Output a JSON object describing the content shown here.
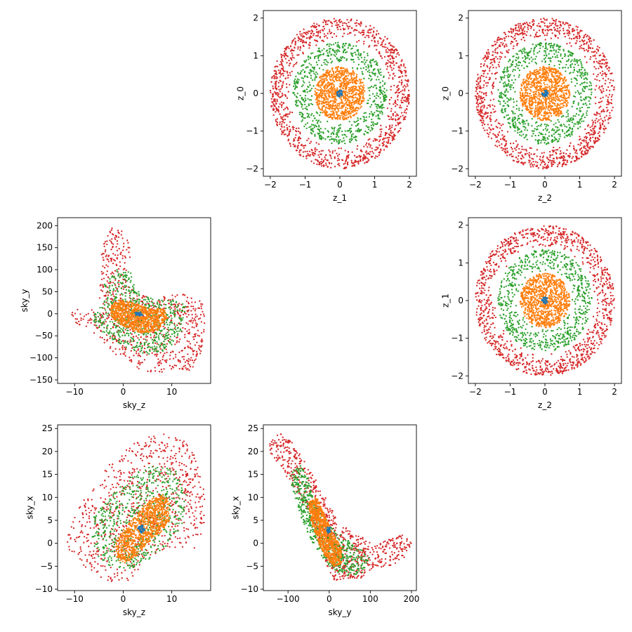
{
  "colors": {
    "c0": "#1f77b4",
    "c1": "#ff7f0e",
    "c2": "#2ca02c",
    "c3": "#d62728",
    "axis": "#000000",
    "background": "#ffffff"
  },
  "chart_data": [
    {
      "id": "z1_vs_z0",
      "type": "scatter",
      "xlabel": "z_1",
      "ylabel": "z_0",
      "xlim": [
        -2.2,
        2.2
      ],
      "ylim": [
        -2.2,
        2.2
      ],
      "xticks": [
        -2,
        -1,
        0,
        1,
        2
      ],
      "yticks": [
        -2,
        -1,
        0,
        1,
        2
      ],
      "grid": false,
      "series": [
        {
          "color": "c3",
          "shape": "ring",
          "cx": 0,
          "cy": 0,
          "r_in": 1.42,
          "r_out": 2.0,
          "n": 1100
        },
        {
          "color": "c2",
          "shape": "ring",
          "cx": 0,
          "cy": 0,
          "r_in": 0.75,
          "r_out": 1.35,
          "n": 700
        },
        {
          "color": "c1",
          "shape": "disk",
          "cx": 0,
          "cy": 0,
          "r_in": 0.0,
          "r_out": 0.72,
          "n": 950
        },
        {
          "color": "c0",
          "shape": "disk",
          "cx": 0,
          "cy": 0,
          "r_in": 0.0,
          "r_out": 0.09,
          "n": 40
        }
      ]
    },
    {
      "id": "z2_vs_z0",
      "type": "scatter",
      "xlabel": "z_2",
      "ylabel": "z_0",
      "xlim": [
        -2.2,
        2.2
      ],
      "ylim": [
        -2.2,
        2.2
      ],
      "xticks": [
        -2,
        -1,
        0,
        1,
        2
      ],
      "yticks": [
        -2,
        -1,
        0,
        1,
        2
      ],
      "grid": false,
      "series": [
        {
          "color": "c3",
          "shape": "ring",
          "cx": 0,
          "cy": 0,
          "r_in": 1.42,
          "r_out": 2.0,
          "n": 1100
        },
        {
          "color": "c2",
          "shape": "ring",
          "cx": 0,
          "cy": 0,
          "r_in": 0.75,
          "r_out": 1.35,
          "n": 700
        },
        {
          "color": "c1",
          "shape": "disk",
          "cx": 0,
          "cy": 0,
          "r_in": 0.0,
          "r_out": 0.72,
          "n": 950
        },
        {
          "color": "c0",
          "shape": "disk",
          "cx": 0,
          "cy": 0,
          "r_in": 0.0,
          "r_out": 0.09,
          "n": 40
        }
      ]
    },
    {
      "id": "z2_vs_z1",
      "type": "scatter",
      "xlabel": "z_2",
      "ylabel": "z_1",
      "xlim": [
        -2.2,
        2.2
      ],
      "ylim": [
        -2.2,
        2.2
      ],
      "xticks": [
        -2,
        -1,
        0,
        1,
        2
      ],
      "yticks": [
        -2,
        -1,
        0,
        1,
        2
      ],
      "grid": false,
      "series": [
        {
          "color": "c3",
          "shape": "ring",
          "cx": 0,
          "cy": 0,
          "r_in": 1.42,
          "r_out": 2.0,
          "n": 1100
        },
        {
          "color": "c2",
          "shape": "ring",
          "cx": 0,
          "cy": 0,
          "r_in": 0.75,
          "r_out": 1.35,
          "n": 700
        },
        {
          "color": "c1",
          "shape": "disk",
          "cx": 0,
          "cy": 0,
          "r_in": 0.0,
          "r_out": 0.72,
          "n": 950
        },
        {
          "color": "c0",
          "shape": "disk",
          "cx": 0,
          "cy": 0,
          "r_in": 0.0,
          "r_out": 0.09,
          "n": 40
        }
      ]
    },
    {
      "id": "skyz_vs_skyy",
      "type": "scatter",
      "xlabel": "sky_z",
      "ylabel": "sky_y",
      "xlim": [
        -13.5,
        18
      ],
      "ylim": [
        -158,
        218
      ],
      "xticks": [
        -10,
        0,
        10
      ],
      "yticks": [
        -150,
        -100,
        -50,
        0,
        50,
        100,
        150,
        200
      ],
      "grid": false,
      "series": [
        {
          "color": "c3",
          "shape": "blob",
          "points": [
            [
              -2.5,
              200
            ],
            [
              1.2,
              180
            ],
            [
              1.5,
              130
            ],
            [
              0.5,
              75
            ],
            [
              3,
              42
            ],
            [
              8,
              40
            ],
            [
              12,
              45
            ],
            [
              16,
              35
            ],
            [
              17,
              20
            ],
            [
              16.5,
              -80
            ],
            [
              14,
              -130
            ],
            [
              8,
              -133
            ],
            [
              4,
              -130
            ],
            [
              -2,
              -90
            ],
            [
              -6,
              -45
            ],
            [
              -10,
              -20
            ],
            [
              -11.5,
              8
            ],
            [
              -8,
              12
            ],
            [
              -4,
              5
            ],
            [
              -5,
              40
            ],
            [
              -5,
              120
            ],
            [
              -3.5,
              175
            ]
          ],
          "n": 800
        },
        {
          "color": "c2",
          "shape": "blob",
          "points": [
            [
              -1.5,
              105
            ],
            [
              1.5,
              95
            ],
            [
              2.5,
              55
            ],
            [
              6,
              35
            ],
            [
              11,
              30
            ],
            [
              13,
              18
            ],
            [
              12,
              -40
            ],
            [
              9,
              -85
            ],
            [
              5,
              -92
            ],
            [
              0,
              -78
            ],
            [
              -4,
              -45
            ],
            [
              -7,
              -10
            ],
            [
              -6,
              10
            ],
            [
              -4,
              28
            ],
            [
              -4,
              75
            ]
          ],
          "n": 650
        },
        {
          "color": "c1",
          "shape": "blob",
          "points": [
            [
              -1,
              32
            ],
            [
              2,
              25
            ],
            [
              5,
              14
            ],
            [
              8.5,
              10
            ],
            [
              9,
              -10
            ],
            [
              7,
              -40
            ],
            [
              3.5,
              -44
            ],
            [
              0,
              -28
            ],
            [
              -2.5,
              -10
            ],
            [
              -2.5,
              18
            ]
          ],
          "n": 900
        },
        {
          "color": "c0",
          "shape": "blob",
          "points": [
            [
              2.5,
              3
            ],
            [
              3.5,
              3
            ],
            [
              4.2,
              -3
            ],
            [
              3.5,
              -5
            ],
            [
              2.6,
              -3
            ]
          ],
          "n": 40
        }
      ]
    },
    {
      "id": "skyz_vs_skyx",
      "type": "scatter",
      "xlabel": "sky_z",
      "ylabel": "sky_x",
      "xlim": [
        -13.5,
        18
      ],
      "ylim": [
        -10.3,
        25.8
      ],
      "xticks": [
        -10,
        0,
        10
      ],
      "yticks": [
        -10,
        -5,
        0,
        5,
        10,
        15,
        20,
        25
      ],
      "grid": false,
      "series": [
        {
          "color": "c3",
          "shape": "blob",
          "points": [
            [
              -11.5,
              3
            ],
            [
              -8,
              10
            ],
            [
              -3,
              17
            ],
            [
              3,
              22.5
            ],
            [
              8,
              24.2
            ],
            [
              12,
              23.5
            ],
            [
              15,
              19
            ],
            [
              17,
              10
            ],
            [
              16.5,
              2
            ],
            [
              15,
              -1
            ],
            [
              10,
              -1
            ],
            [
              5,
              -3
            ],
            [
              3,
              -6
            ],
            [
              1,
              -8.2
            ],
            [
              -3,
              -8.3
            ],
            [
              -6,
              -7
            ],
            [
              -9,
              -4.5
            ],
            [
              -11.5,
              -1
            ]
          ],
          "n": 800
        },
        {
          "color": "c2",
          "shape": "blob",
          "points": [
            [
              -6,
              6
            ],
            [
              -2,
              11
            ],
            [
              2,
              15
            ],
            [
              7,
              17.5
            ],
            [
              11,
              16
            ],
            [
              13,
              11
            ],
            [
              12.5,
              5
            ],
            [
              10,
              0
            ],
            [
              6,
              -3
            ],
            [
              2,
              -5.5
            ],
            [
              -2,
              -5.5
            ],
            [
              -5,
              -3
            ],
            [
              -6.5,
              1
            ]
          ],
          "n": 650
        },
        {
          "color": "c1",
          "shape": "blob",
          "points": [
            [
              -1.5,
              0
            ],
            [
              0,
              3
            ],
            [
              3,
              6.5
            ],
            [
              5.5,
              9.5
            ],
            [
              8,
              10.8
            ],
            [
              9.5,
              9
            ],
            [
              9.5,
              5
            ],
            [
              8,
              2.5
            ],
            [
              5,
              0
            ],
            [
              2.5,
              -3
            ],
            [
              0,
              -4.5
            ],
            [
              -1.5,
              -3
            ]
          ],
          "n": 900
        },
        {
          "color": "c0",
          "shape": "blob",
          "points": [
            [
              3,
              3.5
            ],
            [
              4,
              4
            ],
            [
              4.5,
              3
            ],
            [
              3.8,
              2
            ],
            [
              3,
              2.5
            ]
          ],
          "n": 40
        }
      ]
    },
    {
      "id": "skyy_vs_skyx",
      "type": "scatter",
      "xlabel": "sky_y",
      "ylabel": "sky_x",
      "xlim": [
        -160,
        212
      ],
      "ylim": [
        -10.3,
        25.8
      ],
      "xticks": [
        -100,
        0,
        100,
        200
      ],
      "yticks": [
        -10,
        -5,
        0,
        5,
        10,
        15,
        20,
        25
      ],
      "grid": false,
      "series": [
        {
          "color": "c3",
          "shape": "blob",
          "points": [
            [
              -145,
              22
            ],
            [
              -120,
              24
            ],
            [
              -90,
              22
            ],
            [
              -60,
              18
            ],
            [
              -20,
              12
            ],
            [
              20,
              5
            ],
            [
              60,
              2
            ],
            [
              120,
              0
            ],
            [
              180,
              2
            ],
            [
              200,
              0
            ],
            [
              185,
              -3
            ],
            [
              150,
              -5
            ],
            [
              110,
              -5.5
            ],
            [
              80,
              -7.5
            ],
            [
              40,
              -8.2
            ],
            [
              10,
              -8
            ],
            [
              -5,
              -5
            ],
            [
              -20,
              0
            ],
            [
              -60,
              8
            ],
            [
              -100,
              14
            ],
            [
              -130,
              18
            ],
            [
              -145,
              20
            ]
          ],
          "n": 800
        },
        {
          "color": "c2",
          "shape": "blob",
          "points": [
            [
              -95,
              15
            ],
            [
              -70,
              17
            ],
            [
              -50,
              14
            ],
            [
              -25,
              8
            ],
            [
              10,
              3
            ],
            [
              60,
              0
            ],
            [
              100,
              -3
            ],
            [
              80,
              -6.5
            ],
            [
              40,
              -7.5
            ],
            [
              0,
              -5
            ],
            [
              -40,
              0
            ],
            [
              -70,
              6
            ],
            [
              -90,
              12
            ]
          ],
          "n": 650
        },
        {
          "color": "c1",
          "shape": "blob",
          "points": [
            [
              -50,
              9
            ],
            [
              -30,
              10
            ],
            [
              -10,
              6
            ],
            [
              10,
              2
            ],
            [
              30,
              -1
            ],
            [
              30,
              -4.5
            ],
            [
              10,
              -5
            ],
            [
              -10,
              -3
            ],
            [
              -30,
              1
            ],
            [
              -45,
              5
            ]
          ],
          "n": 900
        },
        {
          "color": "c0",
          "shape": "blob",
          "points": [
            [
              -5,
              3.5
            ],
            [
              2,
              3.5
            ],
            [
              3,
              2.5
            ],
            [
              -2,
              2
            ],
            [
              -6,
              2.6
            ]
          ],
          "n": 40
        }
      ]
    }
  ]
}
